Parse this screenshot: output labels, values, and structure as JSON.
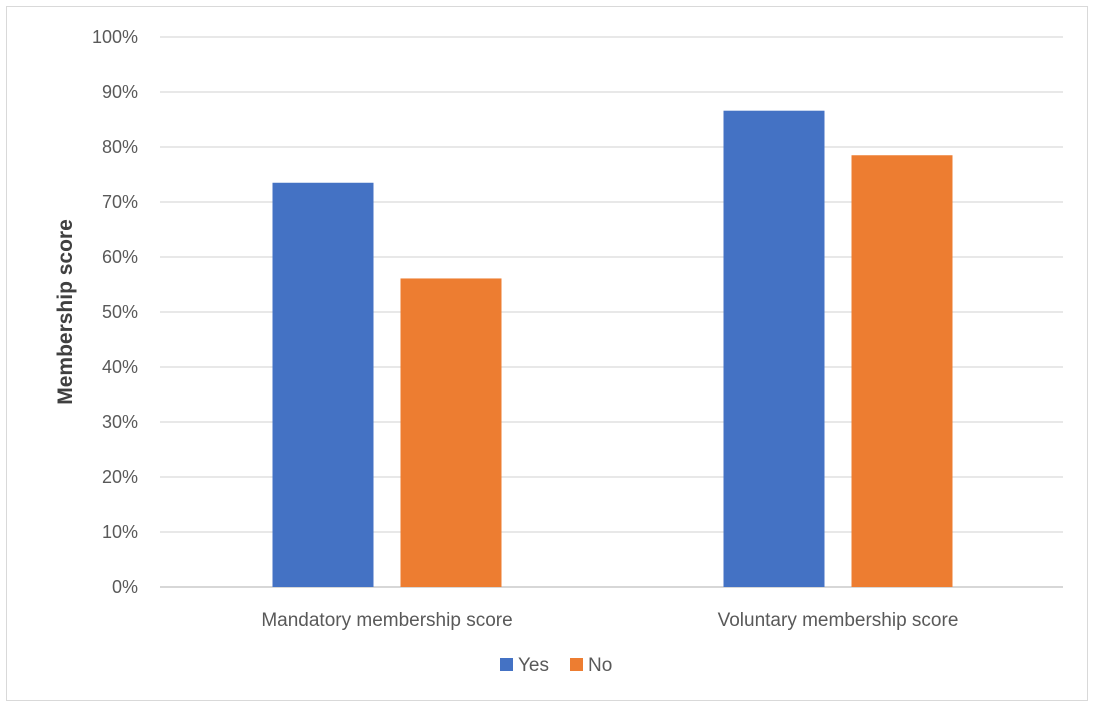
{
  "chart_data": {
    "type": "bar",
    "title": "",
    "xlabel": "",
    "ylabel": "Membership score",
    "ylim": [
      0,
      100
    ],
    "y_ticks": [
      "0%",
      "10%",
      "20%",
      "30%",
      "40%",
      "50%",
      "60%",
      "70%",
      "80%",
      "90%",
      "100%"
    ],
    "y_tick_values": [
      0,
      10,
      20,
      30,
      40,
      50,
      60,
      70,
      80,
      90,
      100
    ],
    "grid": true,
    "legend_position": "bottom",
    "categories": [
      "Mandatory membership score",
      "Voluntary membership score"
    ],
    "series": [
      {
        "name": "Yes",
        "color": "#4472c4",
        "values": [
          73.5,
          86.6
        ]
      },
      {
        "name": "No",
        "color": "#ed7d31",
        "values": [
          56.1,
          78.5
        ]
      }
    ]
  }
}
